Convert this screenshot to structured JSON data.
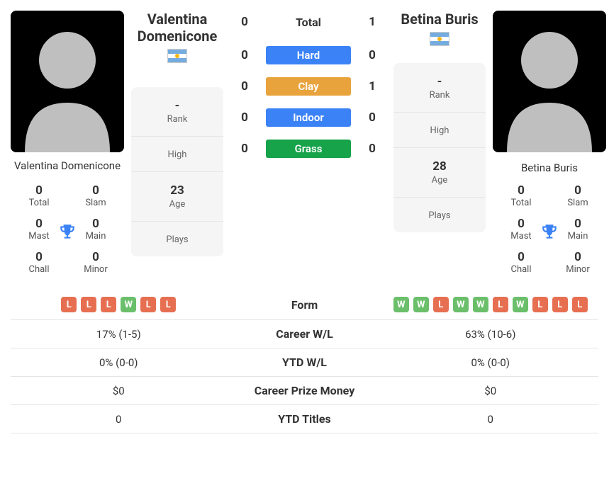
{
  "players": {
    "p1": {
      "name": "Valentina Domenicone",
      "flag": "ar",
      "info": {
        "rank": {
          "val": "-",
          "label": "Rank"
        },
        "high": {
          "val": "",
          "label": "High"
        },
        "age": {
          "val": "23",
          "label": "Age"
        },
        "plays": {
          "val": "",
          "label": "Plays"
        }
      },
      "titles": {
        "total": {
          "val": "0",
          "label": "Total"
        },
        "slam": {
          "val": "0",
          "label": "Slam"
        },
        "mast": {
          "val": "0",
          "label": "Mast"
        },
        "main": {
          "val": "0",
          "label": "Main"
        },
        "chall": {
          "val": "0",
          "label": "Chall"
        },
        "minor": {
          "val": "0",
          "label": "Minor"
        }
      }
    },
    "p2": {
      "name": "Betina Buris",
      "flag": "ar",
      "info": {
        "rank": {
          "val": "-",
          "label": "Rank"
        },
        "high": {
          "val": "",
          "label": "High"
        },
        "age": {
          "val": "28",
          "label": "Age"
        },
        "plays": {
          "val": "",
          "label": "Plays"
        }
      },
      "titles": {
        "total": {
          "val": "0",
          "label": "Total"
        },
        "slam": {
          "val": "0",
          "label": "Slam"
        },
        "mast": {
          "val": "0",
          "label": "Mast"
        },
        "main": {
          "val": "0",
          "label": "Main"
        },
        "chall": {
          "val": "0",
          "label": "Chall"
        },
        "minor": {
          "val": "0",
          "label": "Minor"
        }
      }
    }
  },
  "h2h": {
    "total": {
      "l": "0",
      "label": "Total",
      "r": "1"
    },
    "surfaces": [
      {
        "l": "0",
        "label": "Hard",
        "color": "#3b82f6",
        "r": "0"
      },
      {
        "l": "0",
        "label": "Clay",
        "color": "#e8a33d",
        "r": "1"
      },
      {
        "l": "0",
        "label": "Indoor",
        "color": "#3b82f6",
        "r": "0"
      },
      {
        "l": "0",
        "label": "Grass",
        "color": "#16a34a",
        "r": "0"
      }
    ]
  },
  "stats": {
    "rows": [
      {
        "key": "form",
        "label": "Form"
      },
      {
        "key": "career_wl",
        "label": "Career W/L",
        "l": "17% (1-5)",
        "r": "63% (10-6)"
      },
      {
        "key": "ytd_wl",
        "label": "YTD W/L",
        "l": "0% (0-0)",
        "r": "0% (0-0)"
      },
      {
        "key": "career_prize",
        "label": "Career Prize Money",
        "l": "$0",
        "r": "$0"
      },
      {
        "key": "ytd_titles",
        "label": "YTD Titles",
        "l": "0",
        "r": "0"
      }
    ],
    "form_left": [
      "L",
      "L",
      "L",
      "W",
      "L",
      "L"
    ],
    "form_right": [
      "W",
      "W",
      "L",
      "W",
      "W",
      "L",
      "W",
      "L",
      "L",
      "L"
    ]
  },
  "colors": {
    "win_badge": "#6bbf6b",
    "loss_badge": "#e76f51",
    "trophy": "#3b82f6"
  }
}
